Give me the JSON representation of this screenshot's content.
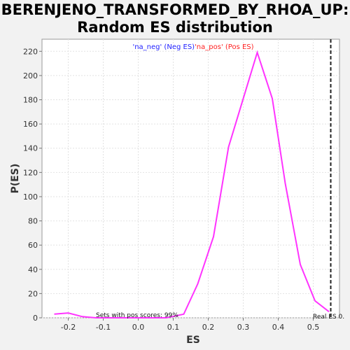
{
  "chart_data": {
    "type": "line",
    "title_line1": "BERENJENO_TRANSFORMED_BY_RHOA_UP:",
    "title_line2": "Random ES distribution",
    "xlabel": "ES",
    "ylabel": "P(ES)",
    "xlim": [
      -0.275,
      0.575
    ],
    "ylim": [
      0,
      230
    ],
    "x_ticks": [
      -0.2,
      -0.1,
      0.0,
      0.1,
      0.2,
      0.3,
      0.4,
      0.5
    ],
    "x_tick_labels": [
      "-0.2",
      "-0.1",
      "0.0",
      "0.1",
      "0.2",
      "0.3",
      "0.4",
      "0.5"
    ],
    "y_ticks": [
      0,
      20,
      40,
      60,
      80,
      100,
      120,
      140,
      160,
      180,
      200,
      220
    ],
    "y_tick_labels": [
      "0",
      "20",
      "40",
      "60",
      "80",
      "100",
      "120",
      "140",
      "160",
      "180",
      "200",
      "220"
    ],
    "grid": true,
    "legend": {
      "neg_label": "'na_neg' (Neg ES)",
      "pos_label": "'na_pos' (Pos ES)",
      "neg_color": "#1f1fff",
      "pos_color": "#ff1f1f"
    },
    "series": [
      {
        "color": "#ff33ff",
        "x": [
          -0.24,
          -0.2,
          -0.16,
          -0.12,
          -0.08,
          -0.04,
          0.0,
          0.04,
          0.08,
          0.13,
          0.17,
          0.215,
          0.258,
          0.3,
          0.34,
          0.383,
          0.42,
          0.463,
          0.505,
          0.545
        ],
        "y": [
          3,
          4,
          1,
          0,
          0,
          0,
          0,
          0,
          0,
          3,
          28,
          67,
          141,
          181,
          219,
          181,
          111,
          44,
          14,
          5
        ]
      }
    ],
    "real_es": 0.55,
    "real_es_label": "Real ES 0.",
    "annotation": "Sets with pos scores: 99%"
  }
}
